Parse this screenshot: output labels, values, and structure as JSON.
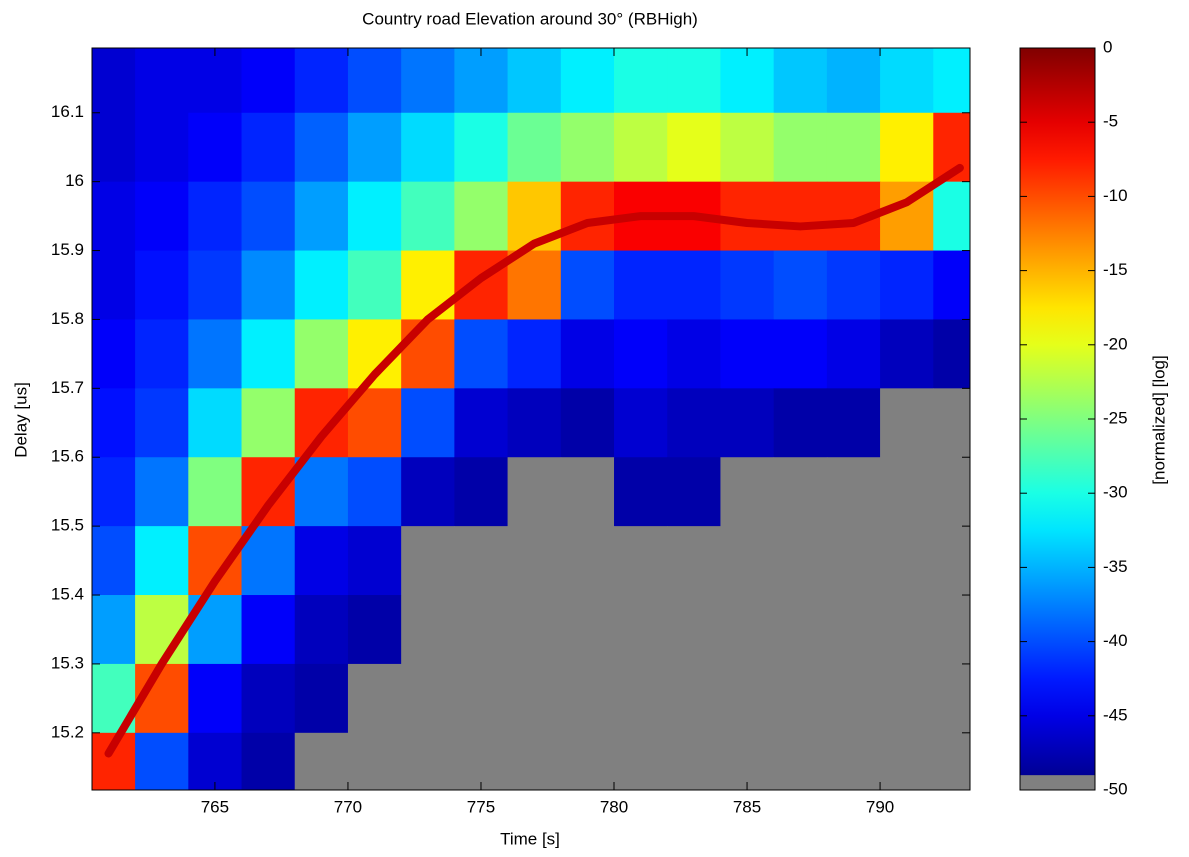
{
  "chart_data": {
    "type": "heatmap",
    "title": "Country road Elevation around 30° (RBHigh)",
    "x_label": "Time [s]",
    "y_label": "Delay [us]",
    "colorbar_label": "[normalized] [log]",
    "colormap": "jet",
    "under_color": "#808080",
    "gray_below": -49,
    "x": [
      761,
      763,
      765,
      767,
      769,
      771,
      773,
      775,
      777,
      779,
      781,
      783,
      785,
      787,
      789,
      791,
      793
    ],
    "y": [
      16.15,
      16.05,
      15.95,
      15.85,
      15.75,
      15.65,
      15.55,
      15.45,
      15.35,
      15.25,
      15.15
    ],
    "z": [
      [
        -46,
        -45,
        -45,
        -44,
        -42,
        -40,
        -38,
        -36,
        -34,
        -32,
        -30,
        -30,
        -32,
        -34,
        -35,
        -33,
        -32
      ],
      [
        -46,
        -45,
        -44,
        -42,
        -39,
        -36,
        -33,
        -30,
        -26,
        -24,
        -22,
        -20,
        -22,
        -24,
        -24,
        -18,
        -8
      ],
      [
        -45,
        -44,
        -42,
        -40,
        -36,
        -32,
        -28,
        -24,
        -16,
        -8,
        -6,
        -6,
        -8,
        -8,
        -8,
        -14,
        -30
      ],
      [
        -45,
        -43,
        -41,
        -37,
        -32,
        -28,
        -18,
        -8,
        -12,
        -40,
        -42,
        -42,
        -41,
        -40,
        -41,
        -42,
        -44
      ],
      [
        -44,
        -42,
        -38,
        -32,
        -24,
        -18,
        -10,
        -40,
        -42,
        -45,
        -44,
        -45,
        -44,
        -44,
        -45,
        -47,
        -48
      ],
      [
        -43,
        -41,
        -33,
        -24,
        -8,
        -10,
        -40,
        -46,
        -47,
        -48,
        -46,
        -47,
        -47,
        -48,
        -48,
        -49,
        -50
      ],
      [
        -42,
        -38,
        -25,
        -8,
        -38,
        -40,
        -47,
        -48,
        -49,
        -49,
        -48,
        -48,
        -49,
        -49,
        -50,
        -50,
        -50
      ],
      [
        -40,
        -32,
        -10,
        -38,
        -45,
        -46,
        -49,
        -49,
        -50,
        -50,
        -49,
        -49,
        -50,
        -50,
        -50,
        -50,
        -50
      ],
      [
        -36,
        -22,
        -36,
        -44,
        -47,
        -48,
        -50,
        -50,
        -50,
        -50,
        -50,
        -50,
        -50,
        -50,
        -50,
        -50,
        -50
      ],
      [
        -28,
        -10,
        -44,
        -47,
        -48,
        -49,
        -50,
        -50,
        -50,
        -50,
        -50,
        -50,
        -50,
        -50,
        -50,
        -50,
        -50
      ],
      [
        -8,
        -40,
        -46,
        -48,
        -49,
        -50,
        -50,
        -50,
        -50,
        -50,
        -50,
        -50,
        -50,
        -50,
        -50,
        -50,
        -50
      ]
    ],
    "ridge": {
      "color": "#c80000",
      "x": [
        761,
        763,
        765,
        767,
        769,
        771,
        773,
        775,
        777,
        779,
        781,
        783,
        785,
        787,
        789,
        791,
        793
      ],
      "y": [
        15.17,
        15.3,
        15.42,
        15.53,
        15.63,
        15.72,
        15.8,
        15.86,
        15.91,
        15.94,
        15.95,
        15.95,
        15.94,
        15.935,
        15.94,
        15.97,
        16.02
      ]
    },
    "xlim": [
      760.38,
      793.38
    ],
    "ylim": [
      15.117,
      16.194
    ],
    "xticks": [
      765,
      770,
      775,
      780,
      785,
      790
    ],
    "yticks": [
      15.2,
      15.3,
      15.4,
      15.5,
      15.6,
      15.7,
      15.8,
      15.9,
      16,
      16.1
    ],
    "clim": [
      -50,
      0
    ],
    "cticks": [
      0,
      -5,
      -10,
      -15,
      -20,
      -25,
      -30,
      -35,
      -40,
      -45,
      -50
    ]
  }
}
